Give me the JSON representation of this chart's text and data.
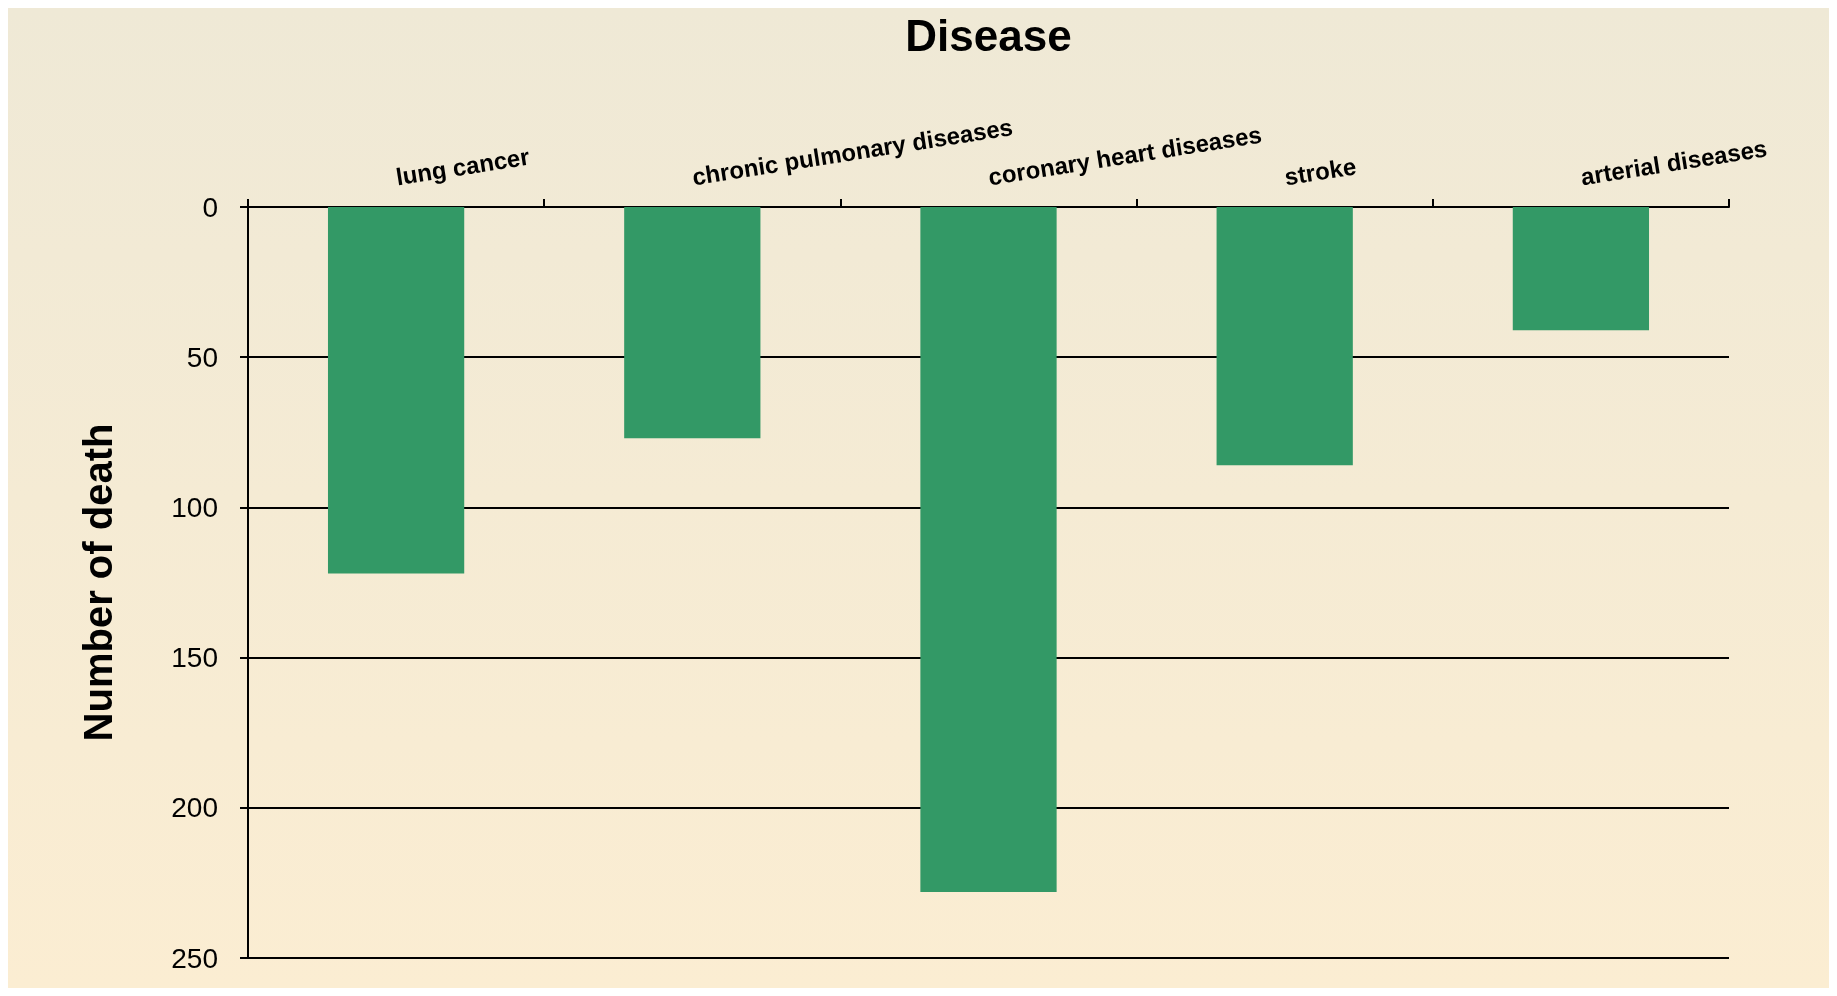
{
  "chart_data": {
    "type": "bar",
    "xlabel": "Disease",
    "ylabel": "Number of death",
    "categories": [
      "lung cancer",
      "chronic pulmonary diseases",
      "coronary heart diseases",
      "stroke",
      "arterial diseases"
    ],
    "values": [
      122,
      77,
      228,
      86,
      41
    ],
    "color": "#339966",
    "ylim": [
      250,
      0
    ],
    "yticks": [
      0,
      50,
      100,
      150,
      200,
      250
    ],
    "grid": "y"
  }
}
